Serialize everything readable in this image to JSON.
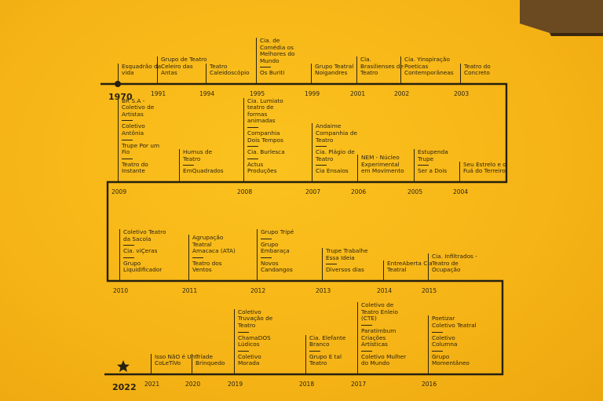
{
  "start": "1970",
  "end": "2022",
  "rows": [
    {
      "entries": [
        {
          "year": "1970",
          "groups": [
            "Esquadrão da vida"
          ]
        },
        {
          "year": "1991",
          "groups": [
            "Grupo de Teatro Celeiro das Antas"
          ]
        },
        {
          "year": "1994",
          "groups": [
            "Teatro Caleidoscópio"
          ]
        },
        {
          "year": "1995",
          "groups": [
            "Cia. de Comédia os Melhores do Mundo",
            "Os Buriti"
          ]
        },
        {
          "year": "1999",
          "groups": [
            "Grupo Teatral Noigandres"
          ]
        },
        {
          "year": "2001",
          "groups": [
            "Cia. Brasilienses de Teatro"
          ]
        },
        {
          "year": "2002",
          "groups": [
            "Cia. Yinspiração Poeticas Contemporâneas"
          ]
        },
        {
          "year": "2003",
          "groups": [
            "Teatro do Concreto"
          ]
        }
      ]
    },
    {
      "entries": [
        {
          "year": "2009",
          "groups": [
            "BR S.A - Coletivo de Artistas",
            "Coletivo Antônia",
            "Trupe Por um Fio",
            "Teatro do Instante"
          ]
        },
        {
          "groups": [
            "Humus de Teatro",
            "EmQuadrados"
          ]
        },
        {
          "year": "2008",
          "groups": [
            "Cia. Lumiato teatro de formas animadas",
            "Companhia Dois Tempos",
            "Cia. Burlesca",
            "Actus Produções"
          ]
        },
        {
          "year": "2007",
          "groups": [
            "Andaime Companhia de Teatro",
            "Cia. Plágio de Teatro",
            "Cia Ensaios"
          ]
        },
        {
          "year": "2006",
          "groups": [
            "NEM - Núcleo Experimental em Movimento"
          ]
        },
        {
          "year": "2005",
          "groups": [
            "Estupenda Trupe",
            "Ser a Dois"
          ]
        },
        {
          "year": "2004",
          "groups": [
            "Seu Estrelo e o Fuá do Terreiro"
          ]
        }
      ]
    },
    {
      "entries": [
        {
          "year": "2010",
          "groups": [
            "Coletivo Teatro da Sacola",
            "Cia. viÇeras",
            "Grupo Liquidificador"
          ]
        },
        {
          "year": "2011",
          "groups": [
            "Agrupação Teatral Amacaca (ATA)",
            "Teatro dos Ventos"
          ]
        },
        {
          "year": "2012",
          "groups": [
            "Grupo Tripé",
            "Grupo Embaraça",
            "Novos Candangos"
          ]
        },
        {
          "year": "2013",
          "groups": [
            "Trupe Trabalhe Essa Ideia",
            "Diversos dias"
          ]
        },
        {
          "year": "2014",
          "groups": [
            "EntreAberta Cia Teatral"
          ]
        },
        {
          "year": "2015",
          "groups": [
            "Cia. Infiltrados - Teatro de Ocupação"
          ]
        }
      ]
    },
    {
      "entries": [
        {
          "year": "2021",
          "groups": [
            "Isso NãO é Um CoLeTiVo"
          ]
        },
        {
          "year": "2020",
          "groups": [
            "Tríade Brinquedo"
          ]
        },
        {
          "year": "2019",
          "groups": [
            "Coletivo Truvação de Teatro",
            "ChamaDOS Lúdicos",
            "Coletivo Morada"
          ]
        },
        {
          "year": "2018",
          "groups": [
            "Cia. Elefante Branco",
            "Grupo E tal Teatro"
          ]
        },
        {
          "year": "2017",
          "groups": [
            "Coletivo de Teatro Enleio (CTE)",
            "Paratimbum Criações Artísticas",
            "Coletivo Mulher do Mundo"
          ]
        },
        {
          "year": "2016",
          "groups": [
            "Poetizar Coletivo Teatral",
            "Coletivo Columna",
            "Grupo Momentâneo"
          ]
        }
      ]
    }
  ]
}
